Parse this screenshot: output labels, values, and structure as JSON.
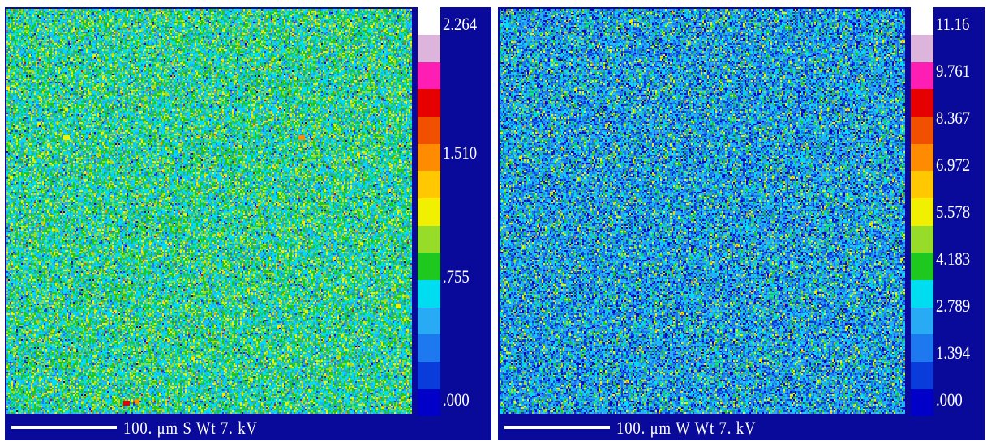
{
  "colors": {
    "background": "#0a0a9a",
    "scale_bar": "#ffffff",
    "palette": [
      "#0000c8",
      "#0a3cdc",
      "#1e78f0",
      "#28aaf5",
      "#00dcf0",
      "#1ec81e",
      "#96dc28",
      "#f0f000",
      "#ffc800",
      "#ff8c00",
      "#f05000",
      "#e60000",
      "#ff1eb4",
      "#dcb4dc",
      "#ffffff"
    ]
  },
  "panels": [
    {
      "element": "S",
      "scale_text": "100. μm  S  Wt  7. kV",
      "colorbar_labels": [
        "2.264",
        "1.510",
        ".755",
        ".000"
      ],
      "dominant_tone": "green-cyan"
    },
    {
      "element": "W",
      "scale_text": "100. μm  W  Wt  7. kV",
      "colorbar_labels": [
        "11.16",
        "9.761",
        "8.367",
        "6.972",
        "5.578",
        "4.183",
        "2.789",
        "1.394",
        ".000"
      ],
      "dominant_tone": "blue-cyan"
    }
  ]
}
